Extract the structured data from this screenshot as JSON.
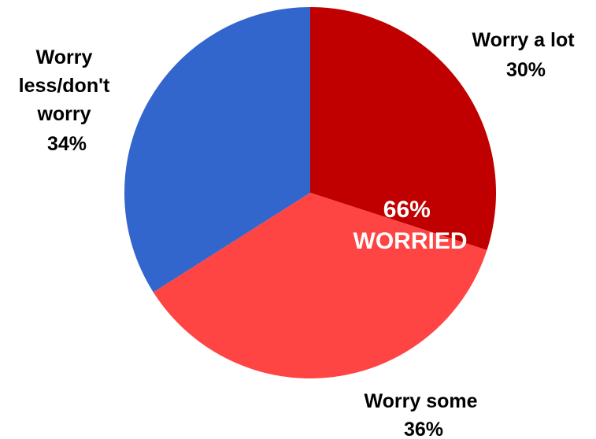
{
  "chart_data": {
    "type": "pie",
    "slices": [
      {
        "label": "Worry a lot",
        "value": 30,
        "value_label": "30%",
        "color": "#c00000"
      },
      {
        "label": "Worry some",
        "value": 36,
        "value_label": "36%",
        "color": "#ff4444"
      },
      {
        "label": "Worry less/don't worry",
        "value": 34,
        "value_label": "34%",
        "color": "#3366cc"
      }
    ],
    "annotation": {
      "value_label": "66%",
      "text": "WORRIED"
    },
    "legend": "none",
    "start_angle_deg": 0,
    "direction": "clockwise"
  },
  "labels": {
    "worry_a_lot": {
      "line1": "Worry a lot",
      "line2": "30%"
    },
    "worry_some": {
      "line1": "Worry some",
      "line2": "36%"
    },
    "worry_less": {
      "line1": "Worry",
      "line2": "less/don't",
      "line3": "worry",
      "line4": "34%"
    }
  }
}
